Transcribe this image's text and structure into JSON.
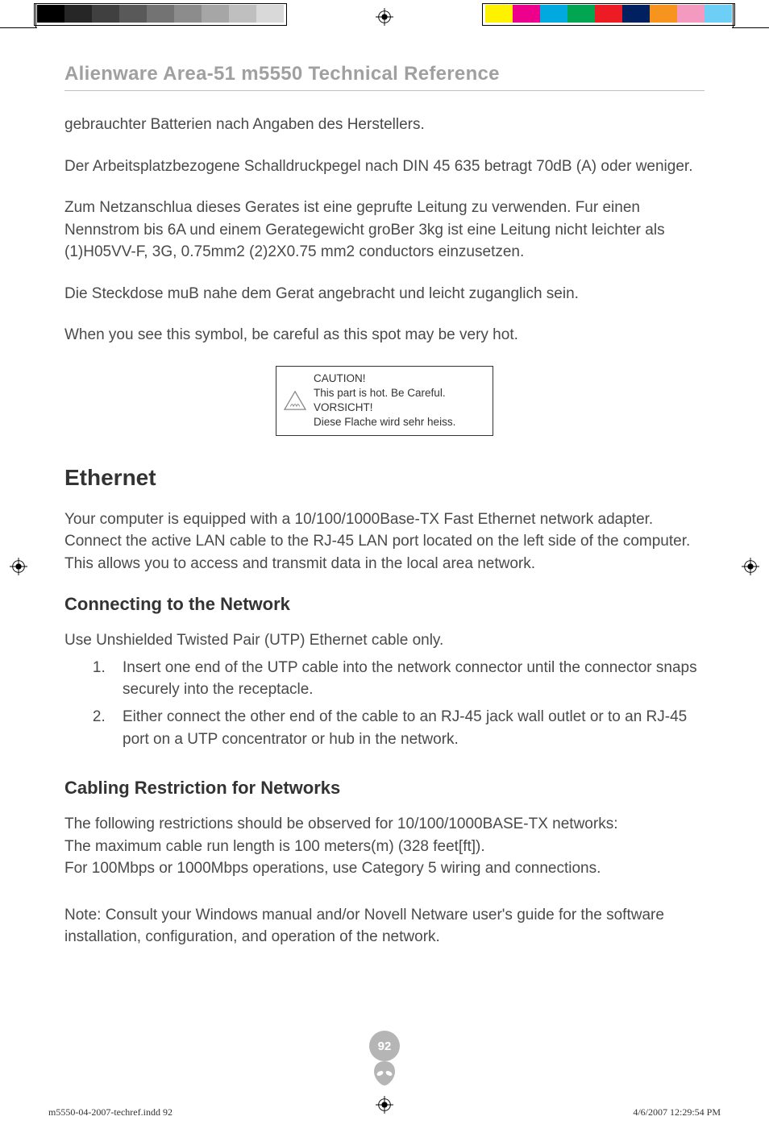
{
  "printer_marks": {
    "grays": [
      "#000000",
      "#262626",
      "#404040",
      "#595959",
      "#737373",
      "#8c8c8c",
      "#a6a6a6",
      "#bfbfbf",
      "#d9d9d9"
    ],
    "colors": [
      "#fff200",
      "#ec008c",
      "#00a9e0",
      "#00a651",
      "#ed1c24",
      "#002060",
      "#f7941d",
      "#f49ac1",
      "#6dcff6"
    ]
  },
  "header": {
    "title": "Alienware Area-51 m5550 Technical Reference"
  },
  "paragraphs": {
    "p1": "gebrauchter Batterien nach Angaben des Herstellers.",
    "p2": "Der Arbeitsplatzbezogene Schalldruckpegel nach DIN 45 635 betragt 70dB (A) oder weniger.",
    "p3": "Zum Netzanschlua dieses Gerates ist eine geprufte Leitung zu verwenden. Fur einen Nennstrom bis 6A und einem Gerategewicht groBer 3kg ist eine Leitung nicht leichter als (1)H05VV-F, 3G, 0.75mm2 (2)2X0.75 mm2 conductors einzusetzen.",
    "p4": "Die Steckdose muB nahe dem Gerat angebracht und leicht zuganglich sein.",
    "p5": "When you see this symbol, be careful as this spot may be very hot."
  },
  "caution": {
    "l1": "CAUTION!",
    "l2": "This part is hot. Be Careful.",
    "l3": "VORSICHT!",
    "l4": "Diese Flache wird sehr heiss."
  },
  "sections": {
    "ethernet_title": "Ethernet",
    "ethernet_body": "Your computer is equipped with a 10/100/1000Base-TX Fast Ethernet network adapter. Connect the active LAN cable to the RJ-45 LAN port located on the left side of the computer. This allows you to access and transmit data in the local area network.",
    "connecting_title": "Connecting to the Network",
    "connecting_intro": "Use Unshielded Twisted Pair (UTP) Ethernet cable only.",
    "steps": [
      "Insert one end of the UTP cable into the network connector until the connector snaps securely into the receptacle.",
      "Either connect the other end of the cable to an RJ-45 jack wall outlet or to an RJ-45 port on a UTP concentrator or hub in the network."
    ],
    "cabling_title": "Cabling Restriction for Networks",
    "cabling_l1": "The following restrictions should be observed for 10/100/1000BASE-TX networks:",
    "cabling_l2": "The maximum cable run length is 100 meters(m) (328 feet[ft]).",
    "cabling_l3": "For 100Mbps or 1000Mbps operations, use Category 5 wiring and connections.",
    "note": "Note: Consult your Windows manual and/or Novell Netware user's guide for the software installation, configuration, and operation of the network."
  },
  "footer": {
    "page_number": "92",
    "slug_left": "m5550-04-2007-techref.indd   92",
    "slug_right": "4/6/2007   12:29:54 PM"
  },
  "colors": {
    "title_gray": "#a0a0a0",
    "text_gray": "#4a4a4a",
    "rule_gray": "#bfbfbf",
    "badge_gray": "#b5b5b5"
  }
}
